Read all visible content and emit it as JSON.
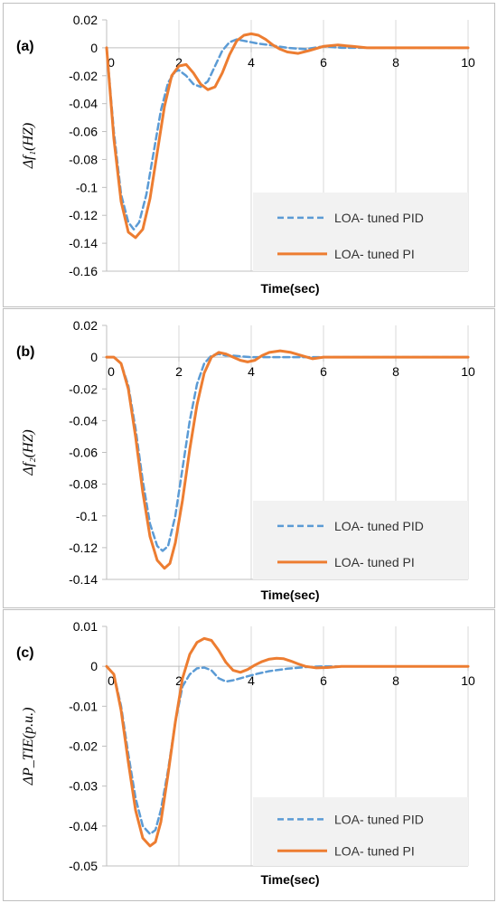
{
  "chart_data": [
    {
      "type": "line",
      "panel_label": "(a)",
      "ylabel": "Δf₁(HZ)",
      "xlabel": "Time(sec)",
      "xlim": [
        0,
        10
      ],
      "ylim": [
        -0.16,
        0.02
      ],
      "xticks": [
        "0",
        "2",
        "4",
        "6",
        "8",
        "10"
      ],
      "yticks": [
        "0.02",
        "0",
        "-0.02",
        "-0.04",
        "-0.06",
        "-0.08",
        "-0.1",
        "-0.12",
        "-0.14",
        "-0.16"
      ],
      "grid": "vertical",
      "legend_position": "bottom-right",
      "series": [
        {
          "name": "LOA- tuned PID",
          "color": "#5B9BD5",
          "style": "dashed",
          "x": [
            0,
            0.2,
            0.4,
            0.6,
            0.75,
            0.9,
            1.1,
            1.3,
            1.5,
            1.7,
            1.9,
            2.0,
            2.2,
            2.4,
            2.6,
            2.8,
            3.0,
            3.2,
            3.4,
            3.6,
            3.8,
            4.0,
            4.2,
            4.5,
            5.0,
            5.5,
            6.0,
            6.5,
            7.0,
            8.0,
            9.0,
            10.0
          ],
          "y": [
            0,
            -0.06,
            -0.105,
            -0.125,
            -0.13,
            -0.125,
            -0.105,
            -0.075,
            -0.045,
            -0.025,
            -0.017,
            -0.016,
            -0.02,
            -0.026,
            -0.028,
            -0.024,
            -0.013,
            -0.002,
            0.004,
            0.006,
            0.005,
            0.004,
            0.003,
            0.002,
            0,
            -0.001,
            0.001,
            0,
            0,
            0,
            0,
            0
          ]
        },
        {
          "name": "LOA- tuned PI",
          "color": "#ED7D31",
          "style": "solid",
          "x": [
            0,
            0.2,
            0.4,
            0.6,
            0.8,
            1.0,
            1.2,
            1.4,
            1.6,
            1.8,
            2.0,
            2.2,
            2.4,
            2.6,
            2.8,
            3.0,
            3.2,
            3.4,
            3.6,
            3.8,
            4.0,
            4.2,
            4.4,
            4.6,
            4.8,
            5.0,
            5.3,
            5.6,
            6.0,
            6.4,
            6.8,
            7.2,
            8.0,
            9.0,
            10.0
          ],
          "y": [
            0,
            -0.065,
            -0.11,
            -0.132,
            -0.136,
            -0.13,
            -0.108,
            -0.075,
            -0.042,
            -0.02,
            -0.013,
            -0.012,
            -0.018,
            -0.026,
            -0.03,
            -0.028,
            -0.018,
            -0.005,
            0.005,
            0.009,
            0.01,
            0.009,
            0.006,
            0.002,
            -0.001,
            -0.003,
            -0.004,
            -0.002,
            0.001,
            0.002,
            0.001,
            0,
            0,
            0,
            0
          ]
        }
      ]
    },
    {
      "type": "line",
      "panel_label": "(b)",
      "ylabel": "Δf₂(HZ)",
      "xlabel": "Time(sec)",
      "xlim": [
        0,
        10
      ],
      "ylim": [
        -0.14,
        0.02
      ],
      "xticks": [
        "0",
        "2",
        "4",
        "6",
        "8",
        "10"
      ],
      "yticks": [
        "0.02",
        "0",
        "-0.02",
        "-0.04",
        "-0.06",
        "-0.08",
        "-0.1",
        "-0.12",
        "-0.14"
      ],
      "grid": "vertical",
      "legend_position": "bottom-right",
      "series": [
        {
          "name": "LOA- tuned PID",
          "color": "#5B9BD5",
          "style": "dashed",
          "x": [
            0,
            0.2,
            0.4,
            0.6,
            0.8,
            1.0,
            1.2,
            1.4,
            1.55,
            1.7,
            1.9,
            2.1,
            2.3,
            2.5,
            2.7,
            2.9,
            3.1,
            3.3,
            3.5,
            3.7,
            4.0,
            4.5,
            5.0,
            5.5,
            6.0,
            6.5,
            7.0,
            8.0,
            9.0,
            10.0
          ],
          "y": [
            0,
            0,
            -0.004,
            -0.018,
            -0.045,
            -0.078,
            -0.105,
            -0.119,
            -0.122,
            -0.119,
            -0.1,
            -0.07,
            -0.04,
            -0.017,
            -0.004,
            0.001,
            0.002,
            0.001,
            0.001,
            0.0005,
            0,
            0,
            0,
            0,
            0,
            0,
            0,
            0,
            0,
            0
          ]
        },
        {
          "name": "LOA- tuned PI",
          "color": "#ED7D31",
          "style": "solid",
          "x": [
            0,
            0.2,
            0.4,
            0.6,
            0.8,
            1.0,
            1.2,
            1.4,
            1.6,
            1.75,
            1.9,
            2.1,
            2.3,
            2.5,
            2.7,
            2.9,
            3.1,
            3.3,
            3.5,
            3.7,
            3.9,
            4.1,
            4.3,
            4.5,
            4.8,
            5.1,
            5.4,
            5.7,
            6.0,
            6.4,
            7.0,
            8.0,
            9.0,
            10.0
          ],
          "y": [
            0,
            0,
            -0.004,
            -0.02,
            -0.05,
            -0.085,
            -0.113,
            -0.128,
            -0.133,
            -0.13,
            -0.117,
            -0.09,
            -0.058,
            -0.03,
            -0.01,
            0,
            0.003,
            0.002,
            0,
            -0.002,
            -0.003,
            -0.002,
            0.001,
            0.003,
            0.004,
            0.003,
            0.001,
            -0.001,
            0,
            0,
            0,
            0,
            0,
            0
          ]
        }
      ]
    },
    {
      "type": "line",
      "panel_label": "(c)",
      "ylabel": "ΔP_TIE(p.u.)",
      "xlabel": "Time(sec)",
      "xlim": [
        0,
        10
      ],
      "ylim": [
        -0.05,
        0.01
      ],
      "xticks": [
        "0",
        "2",
        "4",
        "6",
        "8",
        "10"
      ],
      "yticks": [
        "0.01",
        "0",
        "-0.01",
        "-0.02",
        "-0.03",
        "-0.04",
        "-0.05"
      ],
      "grid": "vertical",
      "legend_position": "bottom-right",
      "series": [
        {
          "name": "LOA- tuned PID",
          "color": "#5B9BD5",
          "style": "dashed",
          "x": [
            0,
            0.2,
            0.4,
            0.6,
            0.8,
            1.0,
            1.2,
            1.35,
            1.5,
            1.7,
            1.9,
            2.1,
            2.3,
            2.5,
            2.7,
            2.9,
            3.1,
            3.3,
            3.5,
            3.7,
            3.9,
            4.2,
            4.5,
            5.0,
            5.5,
            6.0,
            6.5,
            7.0,
            8.0,
            9.0,
            10.0
          ],
          "y": [
            0,
            -0.002,
            -0.01,
            -0.022,
            -0.033,
            -0.04,
            -0.042,
            -0.041,
            -0.036,
            -0.026,
            -0.014,
            -0.005,
            -0.002,
            -0.0005,
            -0.0003,
            -0.001,
            -0.003,
            -0.0038,
            -0.0035,
            -0.003,
            -0.0025,
            -0.0018,
            -0.0012,
            -0.0006,
            -0.0002,
            0,
            0,
            0,
            0,
            0,
            0
          ]
        },
        {
          "name": "LOA- tuned PI",
          "color": "#ED7D31",
          "style": "solid",
          "x": [
            0,
            0.2,
            0.4,
            0.6,
            0.8,
            1.0,
            1.2,
            1.35,
            1.5,
            1.7,
            1.9,
            2.1,
            2.3,
            2.5,
            2.7,
            2.9,
            3.1,
            3.3,
            3.5,
            3.7,
            3.9,
            4.1,
            4.3,
            4.5,
            4.7,
            4.9,
            5.1,
            5.3,
            5.5,
            5.8,
            6.1,
            6.5,
            7.0,
            8.0,
            9.0,
            10.0
          ],
          "y": [
            0,
            -0.002,
            -0.011,
            -0.024,
            -0.036,
            -0.043,
            -0.045,
            -0.044,
            -0.039,
            -0.027,
            -0.014,
            -0.003,
            0.003,
            0.006,
            0.007,
            0.0065,
            0.004,
            0.001,
            -0.001,
            -0.0015,
            -0.0008,
            0.0003,
            0.0012,
            0.0018,
            0.002,
            0.0019,
            0.0013,
            0.0006,
            0,
            -0.0004,
            -0.0003,
            0,
            0,
            0,
            0,
            0
          ]
        }
      ]
    }
  ]
}
